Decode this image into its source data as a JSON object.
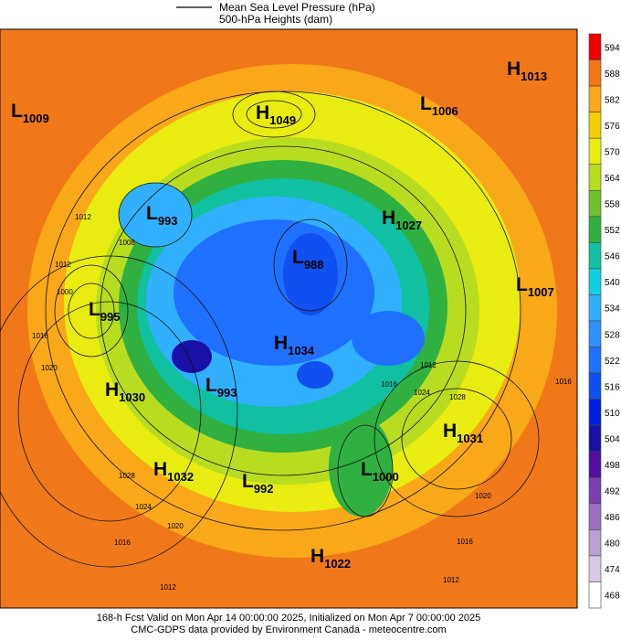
{
  "header": {
    "legend_lines": [
      "Mean Sea Level Pressure (hPa)",
      "500-hPa Heights (dam)"
    ]
  },
  "colorbar": {
    "ticks": [
      594,
      588,
      582,
      576,
      570,
      564,
      558,
      552,
      546,
      540,
      534,
      528,
      522,
      516,
      510,
      504,
      498,
      492,
      486,
      480,
      474,
      468
    ],
    "colors": [
      "#ee0000",
      "#f07818",
      "#f8a818",
      "#f4d000",
      "#e8ec10",
      "#b8dc20",
      "#70c030",
      "#30b040",
      "#10c0a0",
      "#10d0e0",
      "#30b0ff",
      "#3090ff",
      "#2070ff",
      "#1050f0",
      "#0020e0",
      "#1a10a8",
      "#5010a0",
      "#7a40b0",
      "#9a70c0",
      "#b8a0d0",
      "#d8c8e4",
      "#ffffff"
    ]
  },
  "centers": [
    {
      "letter": "L",
      "pressure": "1009"
    },
    {
      "letter": "H",
      "pressure": "1049"
    },
    {
      "letter": "L",
      "pressure": "1006"
    },
    {
      "letter": "H",
      "pressure": "1013"
    },
    {
      "letter": "L",
      "pressure": "993"
    },
    {
      "letter": "H",
      "pressure": "1027"
    },
    {
      "letter": "L",
      "pressure": "1007"
    },
    {
      "letter": "L",
      "pressure": "995"
    },
    {
      "letter": "L",
      "pressure": "988"
    },
    {
      "letter": "H",
      "pressure": "1034"
    },
    {
      "letter": "L",
      "pressure": "993"
    },
    {
      "letter": "H",
      "pressure": "1030"
    },
    {
      "letter": "H",
      "pressure": "1031"
    },
    {
      "letter": "H",
      "pressure": "1032"
    },
    {
      "letter": "L",
      "pressure": "992"
    },
    {
      "letter": "L",
      "pressure": "1000"
    },
    {
      "letter": "H",
      "pressure": "1022"
    }
  ],
  "contour_labels": [
    "1012",
    "1008",
    "1012",
    "1000",
    "1016",
    "1020",
    "1028",
    "1024",
    "1020",
    "1016",
    "1012",
    "1016",
    "1024",
    "1028",
    "1020",
    "1016",
    "1012",
    "1012",
    "1016"
  ],
  "footer": {
    "lines": [
      "168-h Fcst Valid on Mon Apr 14 00:00:00 2025, Initialized on Mon Apr  7 00:00:00 2025",
      "CMC-GDPS data provided by Environment Canada - meteocentre.com"
    ]
  }
}
